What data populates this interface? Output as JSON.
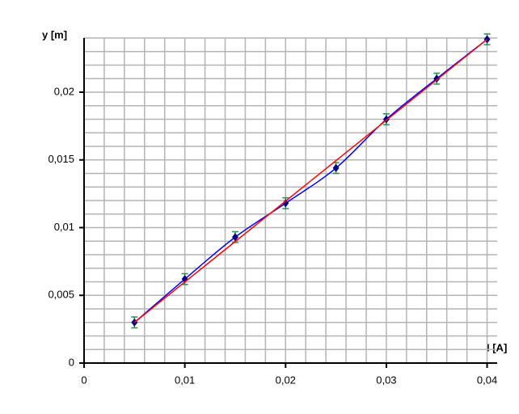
{
  "chart_data": {
    "type": "scatter",
    "x_label": "I [A]",
    "y_label": "y [m]",
    "x": [
      0.005,
      0.01,
      0.015,
      0.02,
      0.025,
      0.03,
      0.035,
      0.04
    ],
    "series": [
      {
        "color": "#000080",
        "line_color": "#0000ff",
        "error_color": "#2e8b57",
        "smooth": true,
        "values": [
          0.003,
          0.0062,
          0.0093,
          0.0118,
          0.0144,
          0.018,
          0.021,
          0.0239
        ],
        "errors": [
          0.0004,
          0.0004,
          0.0004,
          0.0004,
          0.0004,
          0.0004,
          0.0004,
          0.0004
        ]
      }
    ],
    "fit": {
      "color": "#ff0000",
      "x": [
        0.005,
        0.04
      ],
      "values": [
        0.003,
        0.0239
      ]
    },
    "xlim": [
      0,
      0.041
    ],
    "ylim": [
      0,
      0.024
    ],
    "xticks": [
      0,
      {
        "value": 0.01,
        "label": "0,01"
      },
      {
        "value": 0.02,
        "label": "0,02"
      },
      {
        "value": 0.03,
        "label": "0,03"
      },
      {
        "value": 0.04,
        "label": "0,04"
      }
    ],
    "yticks": [
      0,
      {
        "value": 0.005,
        "label": "0,005"
      },
      {
        "value": 0.01,
        "label": "0,01"
      },
      {
        "value": 0.015,
        "label": "0,015"
      },
      {
        "value": 0.02,
        "label": "0,02"
      }
    ],
    "grid": true,
    "xgrid": [
      0.002,
      0.004,
      0.006,
      0.008,
      0.01,
      0.012,
      0.014,
      0.016,
      0.018,
      0.02,
      0.022,
      0.024,
      0.026,
      0.028,
      0.03,
      0.032,
      0.034,
      0.036,
      0.038,
      0.04
    ],
    "ygrid": [
      0.001,
      0.002,
      0.003,
      0.004,
      0.005,
      0.006,
      0.007,
      0.008,
      0.009,
      0.01,
      0.011,
      0.012,
      0.013,
      0.014,
      0.015,
      0.016,
      0.017,
      0.018,
      0.019,
      0.02,
      0.021,
      0.022,
      0.023,
      0.024
    ]
  }
}
